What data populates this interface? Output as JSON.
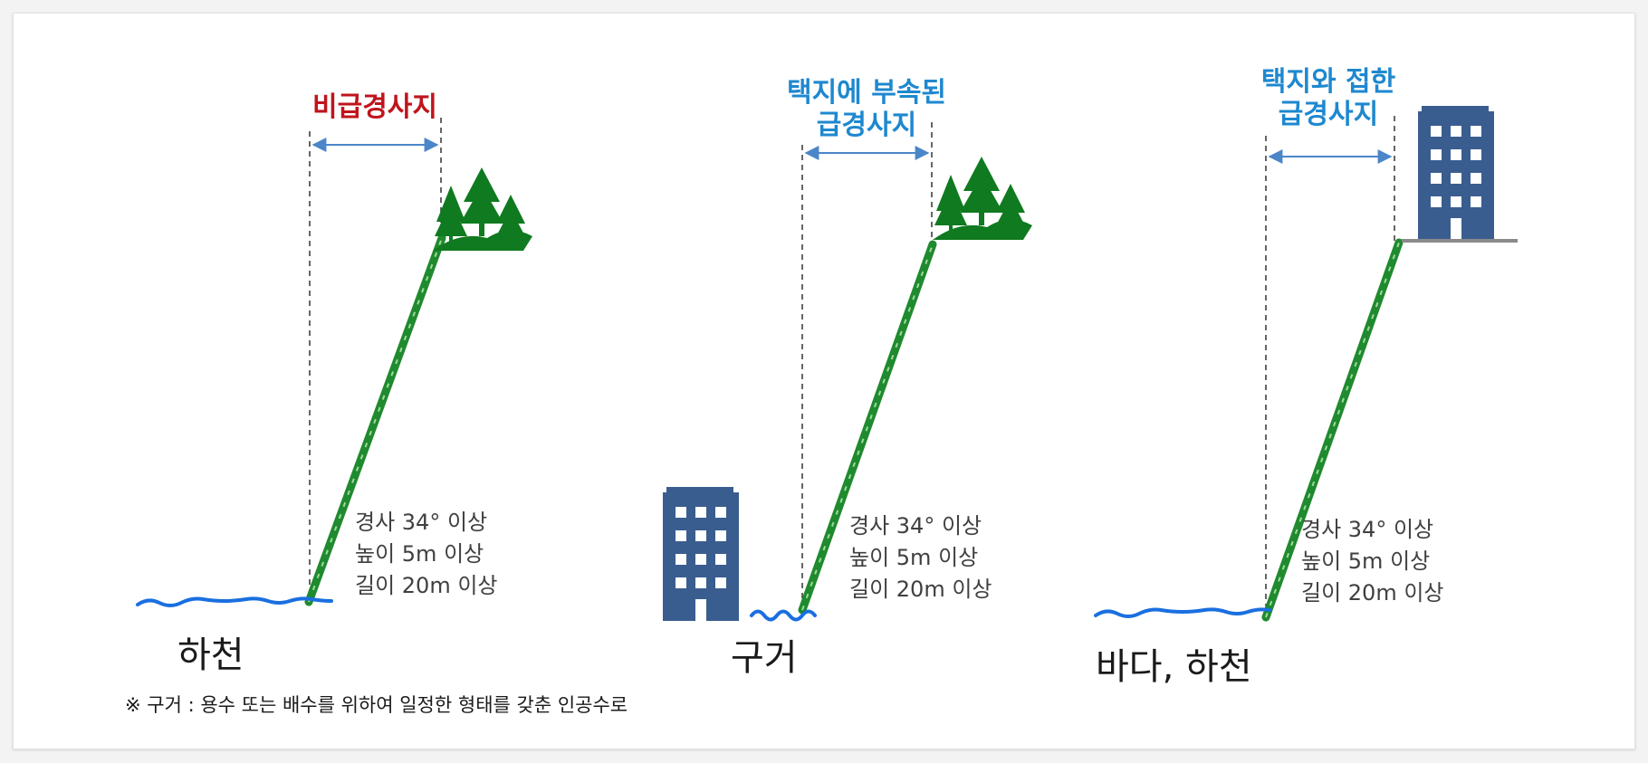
{
  "panels": [
    {
      "title_lines": [
        "비급경사지"
      ],
      "spec_lines": [
        "경사 34° 이상",
        "높이 5m 이상",
        "길이 20m 이상"
      ],
      "bottom_label": "하천"
    },
    {
      "title_lines": [
        "택지에 부속된",
        "급경사지"
      ],
      "spec_lines": [
        "경사 34° 이상",
        "높이 5m 이상",
        "길이 20m 이상"
      ],
      "bottom_label": "구거"
    },
    {
      "title_lines": [
        "택지와 접한",
        "급경사지"
      ],
      "spec_lines": [
        "경사 34° 이상",
        "높이 5m 이상",
        "길이 20m 이상"
      ],
      "bottom_label": "바다, 하천"
    }
  ],
  "footnote": "※ 구거 : 용수 또는 배수를 위하여 일정한 형태를 갖춘 인공수로",
  "colors": {
    "title_red": "#c0141c",
    "title_blue": "#1e88cf",
    "slope_green": "#1f8a2e",
    "tree_green": "#0f7a1f",
    "water_blue": "#1a6fe0",
    "building_blue": "#3a5d8f",
    "arrow_blue": "#4a86c8"
  },
  "icons": [
    "tree-cluster-icon",
    "building-icon",
    "water-wave-icon",
    "slope-line-icon",
    "dimension-arrow-icon"
  ]
}
